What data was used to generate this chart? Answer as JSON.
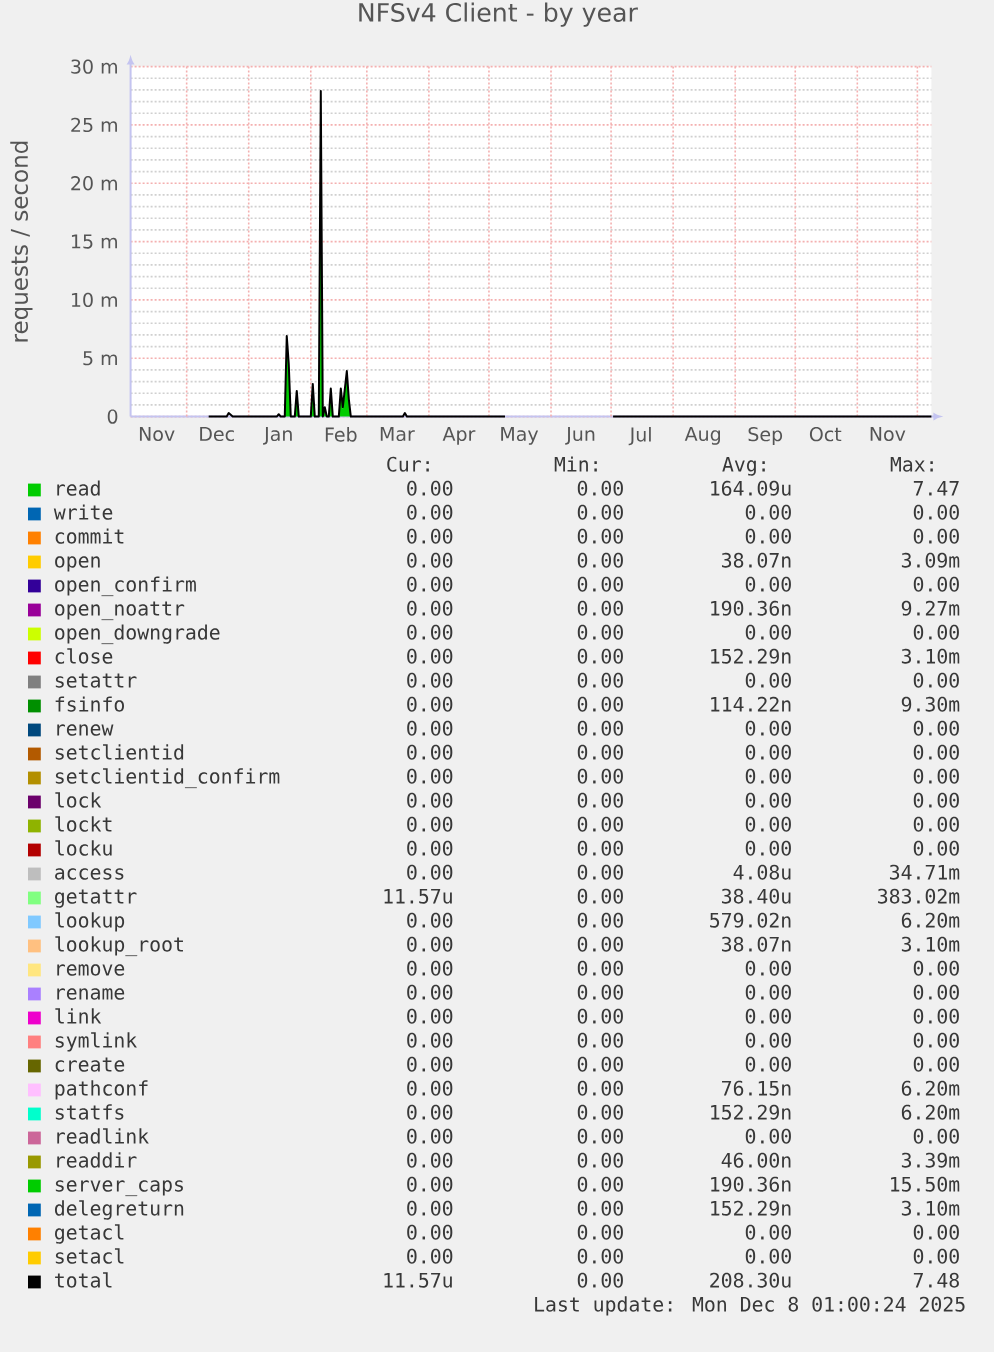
{
  "chart_data": {
    "type": "line",
    "title": "NFSv4 Client - by year",
    "ylabel": "requests / second",
    "xlim": [
      "2024-11-03",
      "2025-12-08"
    ],
    "xticks": [
      {
        "value": "2024-11-16",
        "label": "Nov"
      },
      {
        "value": "2024-12-01",
        "label": null
      },
      {
        "value": "2024-12-16",
        "label": "Dec"
      },
      {
        "value": "2025-01-01",
        "label": null
      },
      {
        "value": "2025-01-16",
        "label": "Jan"
      },
      {
        "value": "2025-02-01",
        "label": null
      },
      {
        "value": "2025-02-16",
        "label": "Feb"
      },
      {
        "value": "2025-03-01",
        "label": null
      },
      {
        "value": "2025-03-16",
        "label": "Mar"
      },
      {
        "value": "2025-04-01",
        "label": null
      },
      {
        "value": "2025-04-16",
        "label": "Apr"
      },
      {
        "value": "2025-05-01",
        "label": null
      },
      {
        "value": "2025-05-16",
        "label": "May"
      },
      {
        "value": "2025-06-01",
        "label": null
      },
      {
        "value": "2025-06-16",
        "label": "Jun"
      },
      {
        "value": "2025-07-01",
        "label": null
      },
      {
        "value": "2025-07-16",
        "label": "Jul"
      },
      {
        "value": "2025-08-01",
        "label": null
      },
      {
        "value": "2025-08-16",
        "label": "Aug"
      },
      {
        "value": "2025-09-01",
        "label": null
      },
      {
        "value": "2025-09-16",
        "label": "Sep"
      },
      {
        "value": "2025-10-01",
        "label": null
      },
      {
        "value": "2025-10-16",
        "label": "Oct"
      },
      {
        "value": "2025-11-01",
        "label": null
      },
      {
        "value": "2025-11-16",
        "label": "Nov"
      },
      {
        "value": "2025-12-01",
        "label": null
      }
    ],
    "ylim": [
      0,
      30
    ],
    "yticks": [
      0,
      {
        "value": 5,
        "label": "5 m"
      },
      {
        "value": 10,
        "label": "10 m"
      },
      {
        "value": 15,
        "label": "15 m"
      },
      {
        "value": 20,
        "label": "20 m"
      },
      {
        "value": 25,
        "label": "25 m"
      },
      {
        "value": 30,
        "label": "30 m"
      }
    ],
    "grid": true,
    "legend": "bottom",
    "series": [
      {
        "name": "read",
        "type": "area",
        "color": "#00cc00",
        "x": [
          "2025-01-19",
          "2025-01-20",
          "2025-01-21",
          "2025-01-22",
          "2025-01-24",
          "2025-01-25",
          "2025-01-26",
          "2025-02-01",
          "2025-02-02",
          "2025-02-03",
          "2025-02-05",
          "2025-02-06",
          "2025-02-07",
          "2025-02-08",
          "2025-02-09",
          "2025-02-10",
          "2025-02-11",
          "2025-02-12",
          "2025-02-15",
          "2025-02-16",
          "2025-02-17",
          "2025-02-19",
          "2025-02-20",
          "2025-02-21"
        ],
        "values": [
          0,
          6.5,
          4.2,
          0,
          0,
          2.0,
          0,
          0,
          2.5,
          0,
          0,
          27.4,
          0,
          0.6,
          0,
          0,
          2.2,
          0,
          0,
          2.2,
          0.6,
          3.6,
          1.3,
          0
        ]
      },
      {
        "name": "write",
        "color": "#0066b3",
        "values": [
          null
        ]
      },
      {
        "name": "commit",
        "color": "#ff8000",
        "values": [
          null
        ]
      },
      {
        "name": "open",
        "color": "#ffcc00",
        "values": [
          null
        ]
      },
      {
        "name": "open_confirm",
        "color": "#330099",
        "values": [
          null
        ]
      },
      {
        "name": "open_noattr",
        "color": "#990099",
        "values": [
          null
        ]
      },
      {
        "name": "open_downgrade",
        "color": "#ccff00",
        "values": [
          null
        ]
      },
      {
        "name": "close",
        "color": "#ff0000",
        "values": [
          null
        ]
      },
      {
        "name": "setattr",
        "color": "#808080",
        "values": [
          null
        ]
      },
      {
        "name": "fsinfo",
        "color": "#008f00",
        "values": [
          null
        ]
      },
      {
        "name": "renew",
        "color": "#00487d",
        "values": [
          null
        ]
      },
      {
        "name": "setclientid",
        "color": "#b35a00",
        "values": [
          null
        ]
      },
      {
        "name": "setclientid_confirm",
        "color": "#b38f00",
        "values": [
          null
        ]
      },
      {
        "name": "lock",
        "color": "#6b006b",
        "values": [
          null
        ]
      },
      {
        "name": "lockt",
        "color": "#8fb300",
        "values": [
          null
        ]
      },
      {
        "name": "locku",
        "color": "#b30000",
        "values": [
          null
        ]
      },
      {
        "name": "access",
        "color": "#bebebe",
        "values": [
          null
        ]
      },
      {
        "name": "getattr",
        "color": "#80ff80",
        "values": [
          null
        ]
      },
      {
        "name": "lookup",
        "color": "#80c9ff",
        "values": [
          null
        ]
      },
      {
        "name": "lookup_root",
        "color": "#ffc080",
        "values": [
          null
        ]
      },
      {
        "name": "remove",
        "color": "#ffe680",
        "values": [
          null
        ]
      },
      {
        "name": "rename",
        "color": "#aa80ff",
        "values": [
          null
        ]
      },
      {
        "name": "link",
        "color": "#ee00cc",
        "values": [
          null
        ]
      },
      {
        "name": "symlink",
        "color": "#ff8080",
        "values": [
          null
        ]
      },
      {
        "name": "create",
        "color": "#666600",
        "values": [
          null
        ]
      },
      {
        "name": "pathconf",
        "color": "#ffbfff",
        "values": [
          null
        ]
      },
      {
        "name": "statfs",
        "color": "#00ffcc",
        "values": [
          null
        ]
      },
      {
        "name": "readlink",
        "color": "#cc6699",
        "values": [
          null
        ]
      },
      {
        "name": "readdir",
        "color": "#999900",
        "values": [
          null
        ]
      },
      {
        "name": "server_caps",
        "color": "#00cc00",
        "values": [
          null
        ]
      },
      {
        "name": "delegreturn",
        "color": "#0066b3",
        "values": [
          null
        ]
      },
      {
        "name": "getacl",
        "color": "#ff8000",
        "values": [
          null
        ]
      },
      {
        "name": "setacl",
        "color": "#ffcc00",
        "values": [
          null
        ]
      },
      {
        "name": "total",
        "color": "#000000",
        "x": [
          "2024-12-12",
          "2024-12-21",
          "2024-12-22",
          "2024-12-24",
          "2025-01-15",
          "2025-01-16",
          "2025-01-17",
          "2025-01-19",
          "2025-01-20",
          "2025-01-21",
          "2025-01-22",
          "2025-01-24",
          "2025-01-25",
          "2025-01-26",
          "2025-02-01",
          "2025-02-02",
          "2025-02-03",
          "2025-02-05",
          "2025-02-06",
          "2025-02-07",
          "2025-02-08",
          "2025-02-09",
          "2025-02-10",
          "2025-02-11",
          "2025-02-12",
          "2025-02-15",
          "2025-02-16",
          "2025-02-17",
          "2025-02-19",
          "2025-02-20",
          "2025-02-21",
          "2025-03-19",
          "2025-03-20",
          "2025-03-21",
          "2025-05-09",
          "2025-06-01",
          "2025-07-02",
          "2025-12-08"
        ],
        "values": [
          0,
          0,
          0.3,
          0,
          0,
          0.2,
          0,
          0,
          6.9,
          4.5,
          0,
          0,
          2.2,
          0,
          0,
          2.8,
          0,
          0,
          27.9,
          0,
          0.8,
          0,
          0,
          2.4,
          0,
          0,
          2.4,
          0.8,
          3.9,
          1.5,
          0,
          0,
          0.3,
          0,
          0,
          null,
          0,
          0
        ]
      }
    ],
    "annotations": [
      "Cur:",
      "Min:",
      "Avg:",
      "Max:",
      "0.00",
      "0.00",
      "164.09u",
      "7.47",
      "0.00",
      "0.00",
      "0.00",
      "0.00",
      "0.00",
      "0.00",
      "0.00",
      "0.00",
      "0.00",
      "0.00",
      "38.07n",
      "3.09m",
      "0.00",
      "0.00",
      "0.00",
      "0.00",
      "0.00",
      "0.00",
      "190.36n",
      "9.27m",
      "0.00",
      "0.00",
      "0.00",
      "0.00",
      "0.00",
      "0.00",
      "152.29n",
      "3.10m",
      "0.00",
      "0.00",
      "0.00",
      "0.00",
      "0.00",
      "0.00",
      "114.22n",
      "9.30m",
      "0.00",
      "0.00",
      "0.00",
      "0.00",
      "0.00",
      "0.00",
      "0.00",
      "0.00",
      "0.00",
      "0.00",
      "0.00",
      "0.00",
      "0.00",
      "0.00",
      "0.00",
      "0.00",
      "0.00",
      "0.00",
      "0.00",
      "0.00",
      "0.00",
      "0.00",
      "0.00",
      "0.00",
      "0.00",
      "0.00",
      "4.08u",
      "34.71m",
      "11.57u",
      "0.00",
      "38.40u",
      "383.02m",
      "0.00",
      "0.00",
      "579.02n",
      "6.20m",
      "0.00",
      "0.00",
      "38.07n",
      "3.10m",
      "0.00",
      "0.00",
      "0.00",
      "0.00",
      "0.00",
      "0.00",
      "0.00",
      "0.00",
      "0.00",
      "0.00",
      "0.00",
      "0.00",
      "0.00",
      "0.00",
      "0.00",
      "0.00",
      "0.00",
      "0.00",
      "0.00",
      "0.00",
      "0.00",
      "0.00",
      "76.15n",
      "6.20m",
      "0.00",
      "0.00",
      "152.29n",
      "6.20m",
      "0.00",
      "0.00",
      "0.00",
      "0.00",
      "0.00",
      "0.00",
      "46.00n",
      "3.39m",
      "0.00",
      "0.00",
      "190.36n",
      "15.50m",
      "0.00",
      "0.00",
      "152.29n",
      "3.10m",
      "0.00",
      "0.00",
      "0.00",
      "0.00",
      "0.00",
      "0.00",
      "0.00",
      "0.00",
      "11.57u",
      "0.00",
      "208.30u",
      "7.48",
      "Last update: Mon Dec 8 01:00:24 2025"
    ]
  }
}
